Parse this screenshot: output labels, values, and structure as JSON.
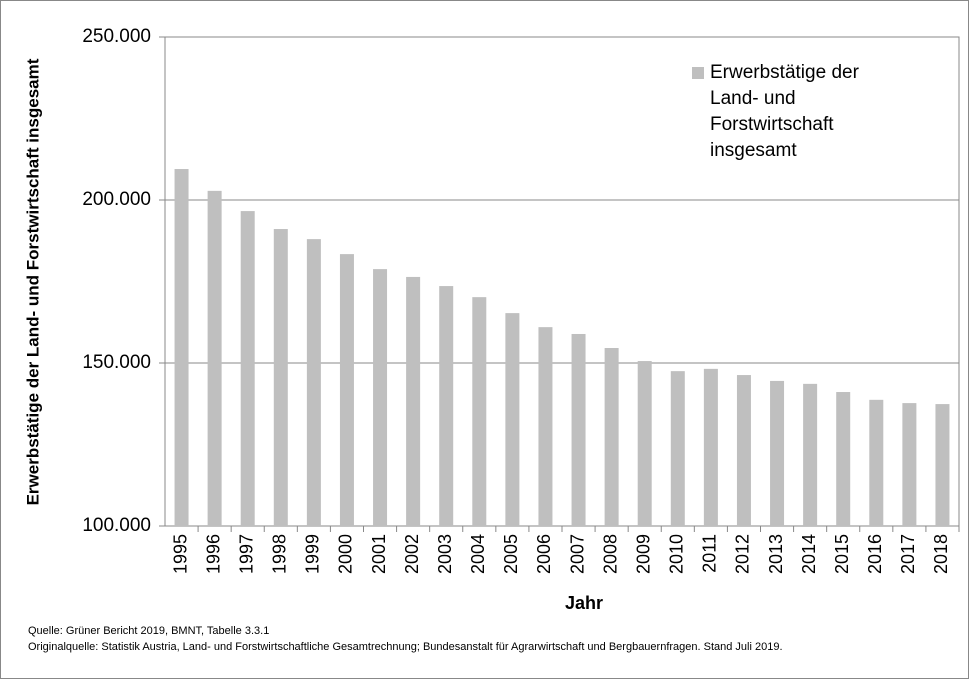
{
  "chart_data": {
    "type": "bar",
    "y_label": "Erwerbstätige der Land- und Forstwirtschaft insgesamt",
    "x_label": "Jahr",
    "categories": [
      "1995",
      "1996",
      "1997",
      "1998",
      "1999",
      "2000",
      "2001",
      "2002",
      "2003",
      "2004",
      "2005",
      "2006",
      "2007",
      "2008",
      "2009",
      "2010",
      "2011",
      "2012",
      "2013",
      "2014",
      "2015",
      "2016",
      "2017",
      "2018"
    ],
    "series": [
      {
        "name": "Erwerbstätige der Land- und Forstwirtschaft insgesamt",
        "color": "#bfbfbf",
        "values": [
          209500,
          202800,
          196600,
          191100,
          188000,
          183400,
          178800,
          176400,
          173600,
          170200,
          165300,
          161000,
          158900,
          154600,
          150600,
          147500,
          148200,
          146300,
          144500,
          143600,
          141100,
          138700,
          137700,
          137400
        ]
      }
    ],
    "ylim": [
      100000,
      250000
    ],
    "yticks": [
      {
        "value": 100000,
        "label": "100.000"
      },
      {
        "value": 150000,
        "label": "150.000"
      },
      {
        "value": 200000,
        "label": "200.000"
      },
      {
        "value": 250000,
        "label": "250.000"
      }
    ],
    "grid": true,
    "legend": "top-right",
    "notes": [
      "Quelle: Grüner Bericht 2019, BMNT, Tabelle 3.3.1",
      "Originalquelle: Statistik Austria, Land- und Forstwirtschaftliche Gesamtrechnung; Bundesanstalt für Agrarwirtschaft und Bergbauernfragen. Stand Juli 2019."
    ]
  }
}
